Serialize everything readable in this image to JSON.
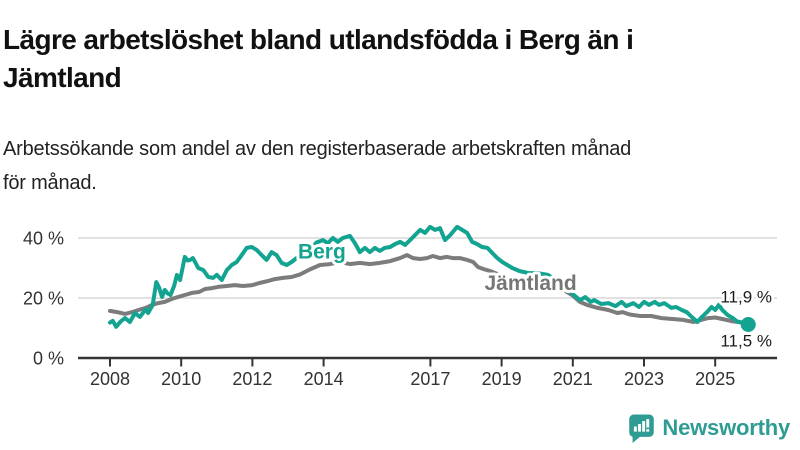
{
  "header": {
    "title": "Lägre arbetslöshet bland utlandsfödda i Berg än i\nJämtland",
    "subtitle": "Arbetssökande som andel av den registerbaserade arbetskraften månad\nför månad."
  },
  "branding": {
    "logo_text": "Newsworthy",
    "logo_icon": "newsworthy-speech-bubble-bars-icon",
    "logo_color": "#2f9c94"
  },
  "chart_data": {
    "type": "line",
    "title": "Lägre arbetslöshet bland utlandsfödda i Berg än i Jämtland",
    "subtitle": "Arbetssökande som andel av den registerbaserade arbetskraften månad för månad.",
    "unit": "%",
    "grid": "horizontal",
    "legend_position": "inline-labels",
    "x_axis": {
      "range": [
        2007.1,
        2026.7
      ],
      "ticks": [
        2008,
        2010,
        2012,
        2014,
        2017,
        2019,
        2021,
        2023,
        2025
      ]
    },
    "y_axis": {
      "range": [
        0,
        45
      ],
      "ticks": [
        {
          "value": 0,
          "label": "0 %"
        },
        {
          "value": 20,
          "label": "20 %"
        },
        {
          "value": 40,
          "label": "40 %"
        }
      ]
    },
    "series": [
      {
        "name": "Jämtland",
        "color": "#7c7c7c",
        "label_color": "#767676",
        "end_label": "11,9 %",
        "end_marker": false,
        "label_pos": [
          2018.52,
          22.6
        ],
        "points": [
          [
            2008.0,
            15.7
          ],
          [
            2008.2,
            15.3
          ],
          [
            2008.42,
            14.7
          ],
          [
            2008.62,
            15.3
          ],
          [
            2008.8,
            16.0
          ],
          [
            2009.0,
            16.7
          ],
          [
            2009.18,
            17.7
          ],
          [
            2009.35,
            18.3
          ],
          [
            2009.54,
            18.7
          ],
          [
            2009.74,
            19.7
          ],
          [
            2009.9,
            20.3
          ],
          [
            2010.1,
            21.0
          ],
          [
            2010.3,
            21.7
          ],
          [
            2010.5,
            22.0
          ],
          [
            2010.67,
            23.0
          ],
          [
            2010.87,
            23.3
          ],
          [
            2011.03,
            23.7
          ],
          [
            2011.28,
            24.0
          ],
          [
            2011.5,
            24.3
          ],
          [
            2011.74,
            24.0
          ],
          [
            2012.0,
            24.3
          ],
          [
            2012.2,
            25.0
          ],
          [
            2012.44,
            25.7
          ],
          [
            2012.63,
            26.3
          ],
          [
            2012.86,
            26.7
          ],
          [
            2013.1,
            27.0
          ],
          [
            2013.33,
            27.8
          ],
          [
            2013.61,
            29.5
          ],
          [
            2013.9,
            31.0
          ],
          [
            2014.18,
            31.3
          ],
          [
            2014.46,
            32.0
          ],
          [
            2014.74,
            31.3
          ],
          [
            2015.02,
            31.7
          ],
          [
            2015.3,
            31.3
          ],
          [
            2015.58,
            31.7
          ],
          [
            2015.87,
            32.3
          ],
          [
            2016.15,
            33.3
          ],
          [
            2016.34,
            34.3
          ],
          [
            2016.51,
            33.3
          ],
          [
            2016.71,
            33.0
          ],
          [
            2016.9,
            33.3
          ],
          [
            2017.07,
            34.0
          ],
          [
            2017.27,
            33.3
          ],
          [
            2017.46,
            33.7
          ],
          [
            2017.63,
            33.3
          ],
          [
            2017.83,
            33.3
          ],
          [
            2018.03,
            32.7
          ],
          [
            2018.2,
            32.0
          ],
          [
            2018.34,
            30.3
          ],
          [
            2018.48,
            29.7
          ],
          [
            2018.68,
            29.0
          ],
          [
            2018.88,
            28.0
          ],
          [
            2019.04,
            27.0
          ],
          [
            2019.19,
            26.7
          ],
          [
            2019.5,
            26.2
          ],
          [
            2019.8,
            25.8
          ],
          [
            2020.1,
            25.5
          ],
          [
            2020.4,
            24.5
          ],
          [
            2020.7,
            23.0
          ],
          [
            2021.0,
            20.8
          ],
          [
            2021.2,
            18.7
          ],
          [
            2021.4,
            17.7
          ],
          [
            2021.7,
            16.7
          ],
          [
            2022.0,
            16.0
          ],
          [
            2022.25,
            15.0
          ],
          [
            2022.4,
            15.3
          ],
          [
            2022.6,
            14.5
          ],
          [
            2022.9,
            14.0
          ],
          [
            2023.2,
            14.0
          ],
          [
            2023.5,
            13.3
          ],
          [
            2023.8,
            13.0
          ],
          [
            2024.1,
            12.7
          ],
          [
            2024.4,
            12.0
          ],
          [
            2024.6,
            12.7
          ],
          [
            2024.8,
            13.3
          ],
          [
            2025.0,
            13.5
          ],
          [
            2025.2,
            13.0
          ],
          [
            2025.5,
            12.2
          ],
          [
            2025.7,
            11.9
          ],
          [
            2025.9,
            11.9
          ]
        ]
      },
      {
        "name": "Berg",
        "color": "#12a391",
        "label_color": "#12a391",
        "end_label": "11,5 %",
        "end_marker": true,
        "label_pos": [
          2013.28,
          33.2
        ],
        "points": [
          [
            2008.0,
            11.8
          ],
          [
            2008.08,
            12.4
          ],
          [
            2008.17,
            10.4
          ],
          [
            2008.3,
            12.2
          ],
          [
            2008.42,
            13.3
          ],
          [
            2008.56,
            12.0
          ],
          [
            2008.7,
            15.0
          ],
          [
            2008.84,
            13.7
          ],
          [
            2009.0,
            16.2
          ],
          [
            2009.07,
            15.0
          ],
          [
            2009.2,
            17.7
          ],
          [
            2009.3,
            25.3
          ],
          [
            2009.38,
            23.5
          ],
          [
            2009.46,
            20.3
          ],
          [
            2009.54,
            22.7
          ],
          [
            2009.62,
            21.5
          ],
          [
            2009.7,
            21.0
          ],
          [
            2009.8,
            24.0
          ],
          [
            2009.88,
            27.7
          ],
          [
            2009.97,
            26.0
          ],
          [
            2010.1,
            33.7
          ],
          [
            2010.18,
            32.5
          ],
          [
            2010.25,
            32.7
          ],
          [
            2010.33,
            33.3
          ],
          [
            2010.48,
            30.0
          ],
          [
            2010.62,
            29.3
          ],
          [
            2010.76,
            27.0
          ],
          [
            2010.9,
            26.7
          ],
          [
            2011.0,
            27.7
          ],
          [
            2011.14,
            26.0
          ],
          [
            2011.28,
            29.3
          ],
          [
            2011.42,
            31.0
          ],
          [
            2011.56,
            32.0
          ],
          [
            2011.7,
            34.3
          ],
          [
            2011.84,
            36.7
          ],
          [
            2011.98,
            37.0
          ],
          [
            2012.12,
            36.0
          ],
          [
            2012.26,
            34.3
          ],
          [
            2012.4,
            32.7
          ],
          [
            2012.54,
            35.3
          ],
          [
            2012.68,
            34.3
          ],
          [
            2012.82,
            31.7
          ],
          [
            2012.96,
            31.0
          ],
          [
            2013.1,
            32.0
          ],
          [
            2013.24,
            33.3
          ],
          [
            2013.38,
            33.7
          ],
          [
            2013.5,
            34.5
          ],
          [
            2013.65,
            36.5
          ],
          [
            2013.8,
            38.5
          ],
          [
            2013.98,
            39.3
          ],
          [
            2014.12,
            38.3
          ],
          [
            2014.26,
            40.0
          ],
          [
            2014.4,
            38.7
          ],
          [
            2014.54,
            40.0
          ],
          [
            2014.74,
            40.7
          ],
          [
            2014.88,
            38.3
          ],
          [
            2015.02,
            35.3
          ],
          [
            2015.16,
            36.7
          ],
          [
            2015.3,
            35.3
          ],
          [
            2015.44,
            36.7
          ],
          [
            2015.58,
            35.7
          ],
          [
            2015.72,
            36.7
          ],
          [
            2015.87,
            37.0
          ],
          [
            2016.01,
            38.0
          ],
          [
            2016.15,
            38.7
          ],
          [
            2016.29,
            37.7
          ],
          [
            2016.43,
            39.3
          ],
          [
            2016.57,
            41.0
          ],
          [
            2016.71,
            42.7
          ],
          [
            2016.85,
            41.7
          ],
          [
            2016.99,
            43.7
          ],
          [
            2017.13,
            42.7
          ],
          [
            2017.27,
            43.3
          ],
          [
            2017.41,
            39.3
          ],
          [
            2017.56,
            41.0
          ],
          [
            2017.75,
            43.7
          ],
          [
            2017.89,
            42.7
          ],
          [
            2018.03,
            41.7
          ],
          [
            2018.17,
            38.7
          ],
          [
            2018.31,
            38.0
          ],
          [
            2018.45,
            37.0
          ],
          [
            2018.6,
            36.7
          ],
          [
            2018.74,
            35.0
          ],
          [
            2018.88,
            33.3
          ],
          [
            2019.02,
            32.0
          ],
          [
            2019.16,
            31.0
          ],
          [
            2019.3,
            30.0
          ],
          [
            2019.5,
            29.0
          ],
          [
            2019.75,
            28.3
          ],
          [
            2020.0,
            28.3
          ],
          [
            2020.3,
            27.7
          ],
          [
            2020.6,
            25.5
          ],
          [
            2020.8,
            23.5
          ],
          [
            2021.0,
            21.3
          ],
          [
            2021.1,
            20.3
          ],
          [
            2021.2,
            19.3
          ],
          [
            2021.35,
            20.3
          ],
          [
            2021.5,
            18.7
          ],
          [
            2021.6,
            19.3
          ],
          [
            2021.8,
            18.0
          ],
          [
            2022.0,
            18.3
          ],
          [
            2022.2,
            17.3
          ],
          [
            2022.37,
            18.7
          ],
          [
            2022.5,
            17.3
          ],
          [
            2022.7,
            18.3
          ],
          [
            2022.86,
            17.0
          ],
          [
            2023.0,
            18.7
          ],
          [
            2023.14,
            17.7
          ],
          [
            2023.3,
            18.7
          ],
          [
            2023.43,
            17.7
          ],
          [
            2023.57,
            18.3
          ],
          [
            2023.77,
            16.7
          ],
          [
            2023.9,
            17.0
          ],
          [
            2024.06,
            16.0
          ],
          [
            2024.2,
            15.3
          ],
          [
            2024.34,
            13.7
          ],
          [
            2024.5,
            12.0
          ],
          [
            2024.63,
            13.7
          ],
          [
            2024.77,
            15.3
          ],
          [
            2024.9,
            17.0
          ],
          [
            2025.0,
            16.0
          ],
          [
            2025.1,
            17.7
          ],
          [
            2025.2,
            16.0
          ],
          [
            2025.35,
            14.3
          ],
          [
            2025.5,
            13.3
          ],
          [
            2025.6,
            12.3
          ],
          [
            2025.75,
            11.7
          ],
          [
            2025.9,
            11.5
          ]
        ]
      }
    ]
  }
}
